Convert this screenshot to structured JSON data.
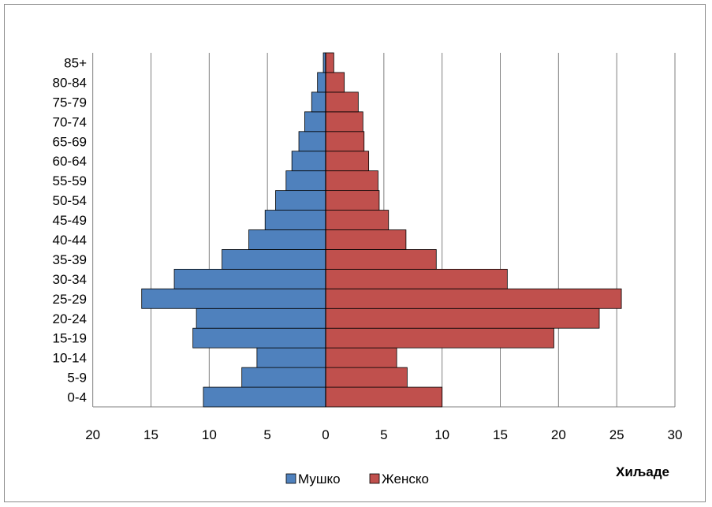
{
  "chart_data": {
    "type": "bar",
    "orientation": "horizontal",
    "subtype": "population-pyramid",
    "categories": [
      "0-4",
      "5-9",
      "10-14",
      "15-19",
      "20-24",
      "25-29",
      "30-34",
      "35-39",
      "40-44",
      "45-49",
      "50-54",
      "55-59",
      "60-64",
      "65-69",
      "70-74",
      "75-79",
      "80-84",
      "85+"
    ],
    "series": [
      {
        "name": "Мушко",
        "color": "#4f81bd",
        "side": "left",
        "values": [
          10.5,
          7.2,
          5.9,
          11.4,
          11.1,
          15.8,
          13.0,
          8.9,
          6.6,
          5.2,
          4.3,
          3.4,
          2.9,
          2.3,
          1.8,
          1.2,
          0.7,
          0.2
        ]
      },
      {
        "name": "Женско",
        "color": "#c0504d",
        "side": "right",
        "values": [
          10.0,
          7.0,
          6.1,
          19.6,
          23.5,
          25.4,
          15.6,
          9.5,
          6.9,
          5.4,
          4.6,
          4.5,
          3.7,
          3.3,
          3.2,
          2.8,
          1.6,
          0.7
        ]
      }
    ],
    "xaxis": {
      "left_range": [
        0,
        20
      ],
      "right_range": [
        0,
        30
      ],
      "left_ticks": [
        "20",
        "15",
        "10",
        "5"
      ],
      "right_ticks": [
        "0",
        "5",
        "10",
        "15",
        "20",
        "25",
        "30"
      ],
      "unit_label": "Хиљаде"
    },
    "grid": true,
    "legend_position": "bottom"
  }
}
